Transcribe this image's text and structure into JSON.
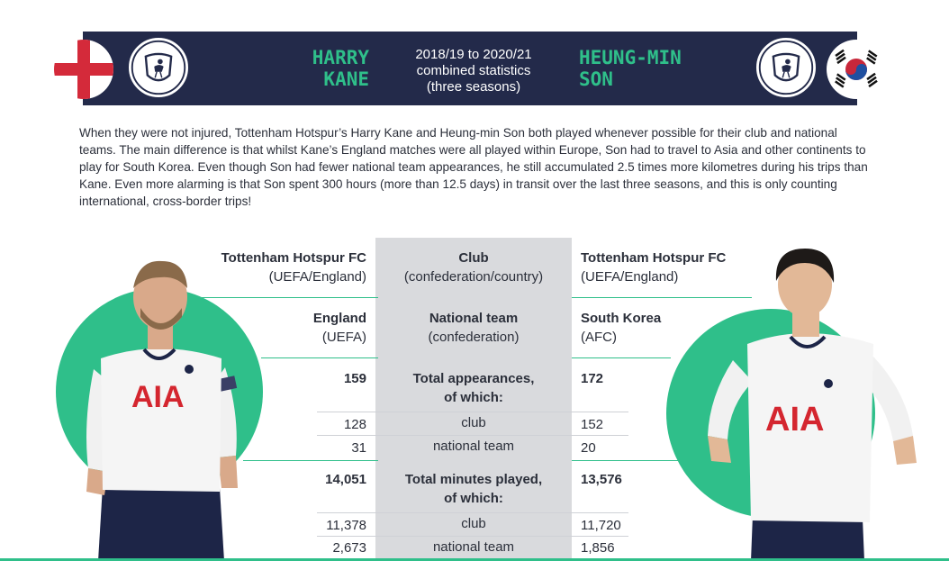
{
  "header": {
    "left_player": "HARRY\nKANE",
    "right_player": "HEUNG-MIN\nSON",
    "subtitle": "2018/19 to 2020/21\ncombined statistics\n(three seasons)"
  },
  "intro": "When they were not injured, Tottenham Hotspur’s Harry Kane and Heung-min Son both played whenever possible for their club and national teams. The main difference is that whilst Kane’s England matches were all played within Europe, Son had to travel to Asia and other continents to play for South Korea. Even though Son had fewer national team appearances, he still accumulated 2.5 times more kilometres during his trips than Kane. Even more alarming is that Son spent 300 hours (more than 12.5 days) in transit over the last three seasons, and this is only counting international, cross-border trips!",
  "shirt_sponsor": "AIA",
  "icons": {
    "left_flag": "england-flag-icon",
    "right_flag": "south-korea-flag-icon",
    "crest": "tottenham-crest-icon"
  },
  "colors": {
    "navy": "#232a4a",
    "green": "#2fbf8a",
    "grey": "#d9dadd",
    "red": "#d42a3a"
  },
  "table": {
    "club": {
      "label": "Club",
      "sub": "(confederation/country)",
      "kane": "Tottenham Hotspur FC",
      "kane_sub": "(UEFA/England)",
      "son": "Tottenham Hotspur FC",
      "son_sub": "(UEFA/England)"
    },
    "national": {
      "label": "National team",
      "sub": "(confederation)",
      "kane": "England",
      "kane_sub": "(UEFA)",
      "son": "South Korea",
      "son_sub": "(AFC)"
    },
    "appearances": {
      "label": "Total appearances,\nof which:",
      "kane": "159",
      "son": "172",
      "rows": [
        {
          "label": "club",
          "kane": "128",
          "son": "152"
        },
        {
          "label": "national team",
          "kane": "31",
          "son": "20"
        }
      ]
    },
    "minutes": {
      "label": "Total minutes played,\nof which:",
      "kane": "14,051",
      "son": "13,576",
      "rows": [
        {
          "label": "club",
          "kane": "11,378",
          "son": "11,720"
        },
        {
          "label": "national team",
          "kane": "2,673",
          "son": "1,856"
        }
      ]
    }
  }
}
